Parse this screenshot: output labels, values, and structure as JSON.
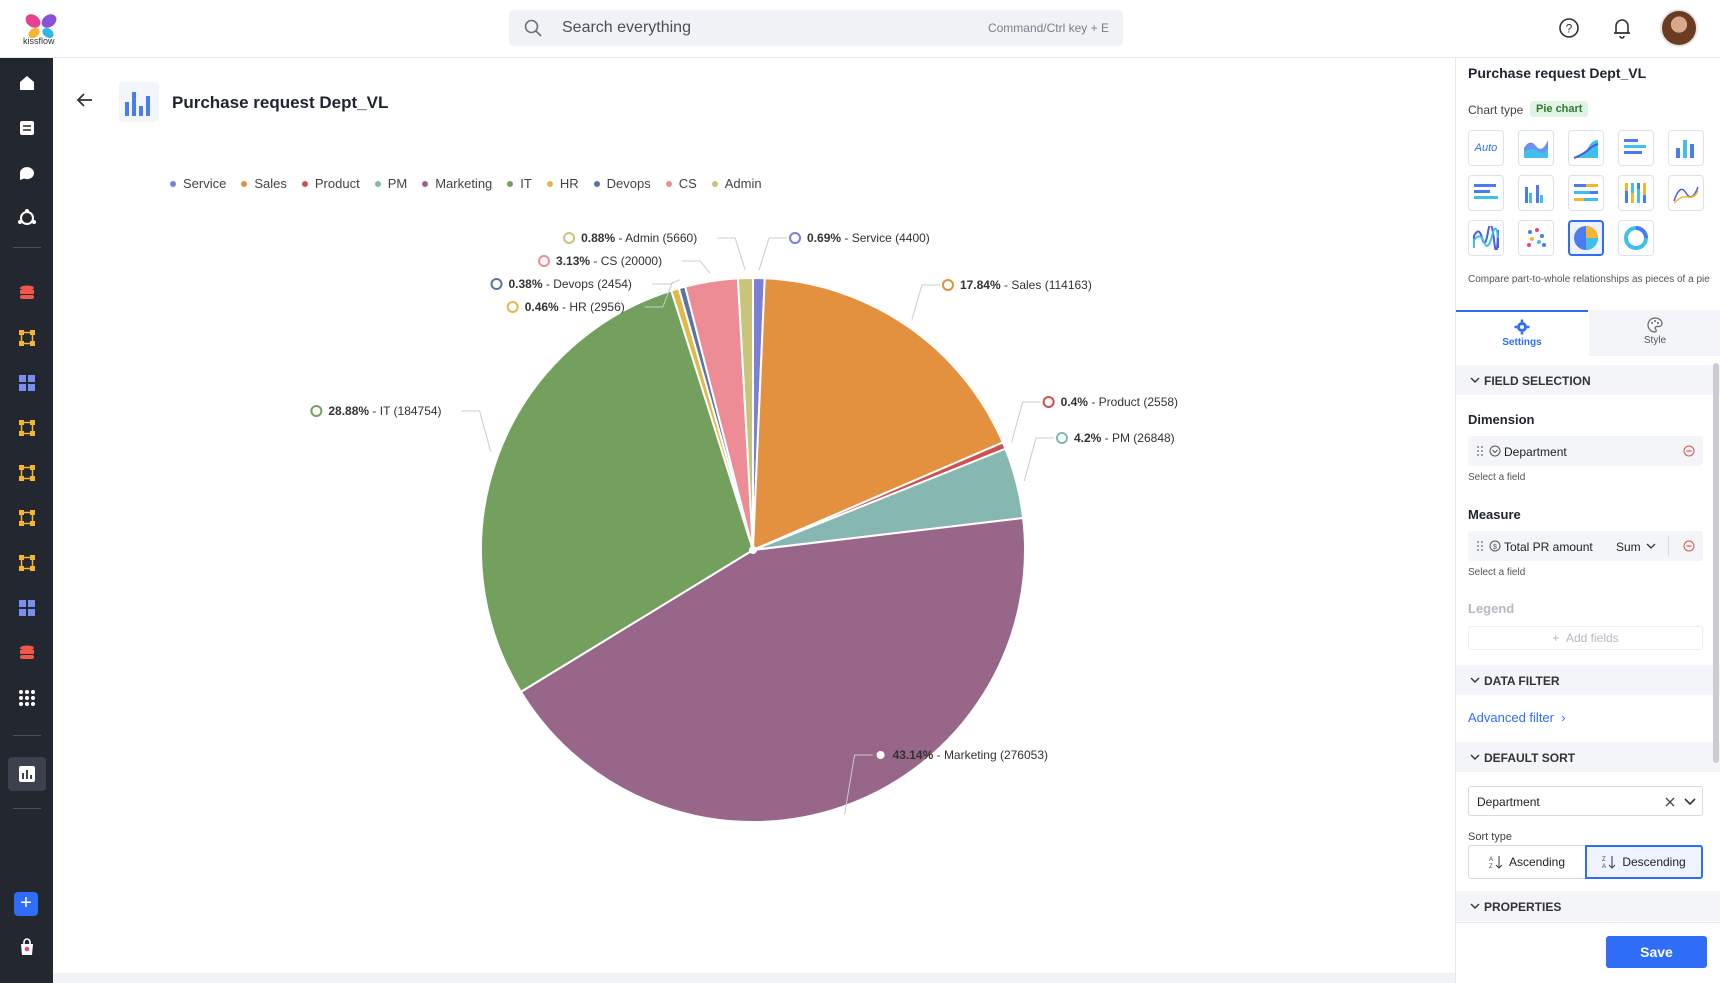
{
  "app": {
    "logo_text": "kissflow"
  },
  "search": {
    "placeholder": "Search everything",
    "shortcut_hint": "Command/Ctrl key + E"
  },
  "header": {
    "title": "Purchase request Dept_VL"
  },
  "legend": [
    {
      "name": "Service",
      "color": "#7b7fd6"
    },
    {
      "name": "Sales",
      "color": "#e4913f"
    },
    {
      "name": "Product",
      "color": "#cf5050"
    },
    {
      "name": "PM",
      "color": "#86b7b0"
    },
    {
      "name": "Marketing",
      "color": "#976689"
    },
    {
      "name": "IT",
      "color": "#74a05e"
    },
    {
      "name": "HR",
      "color": "#e2b84a"
    },
    {
      "name": "Devops",
      "color": "#5b74a4"
    },
    {
      "name": "CS",
      "color": "#ee8c95"
    },
    {
      "name": "Admin",
      "color": "#c8c479"
    }
  ],
  "chart_data": {
    "type": "pie",
    "title": "",
    "slices": [
      {
        "name": "Service",
        "value": 4400,
        "percent": "0.69%",
        "color": "#7b7fd6"
      },
      {
        "name": "Sales",
        "value": 114163,
        "percent": "17.84%",
        "color": "#e4913f"
      },
      {
        "name": "Product",
        "value": 2558,
        "percent": "0.4%",
        "color": "#cf5050"
      },
      {
        "name": "PM",
        "value": 26848,
        "percent": "4.2%",
        "color": "#86b7b0"
      },
      {
        "name": "Marketing",
        "value": 276053,
        "percent": "43.14%",
        "color": "#976689"
      },
      {
        "name": "IT",
        "value": 184754,
        "percent": "28.88%",
        "color": "#74a05e"
      },
      {
        "name": "HR",
        "value": 2956,
        "percent": "0.46%",
        "color": "#e2b84a"
      },
      {
        "name": "Devops",
        "value": 2454,
        "percent": "0.38%",
        "color": "#5b74a4"
      },
      {
        "name": "CS",
        "value": 20000,
        "percent": "3.13%",
        "color": "#ee8c95"
      },
      {
        "name": "Admin",
        "value": 5660,
        "percent": "0.88%",
        "color": "#c8c479"
      }
    ],
    "legend_position": "top-left"
  },
  "panel": {
    "title": "Purchase request Dept_VL",
    "chart_type_label": "Chart type",
    "chart_type_value": "Pie chart",
    "chart_types": [
      "auto",
      "area",
      "area-stepped",
      "horizontal-bar",
      "vertical-bar",
      "stacked-horizontal-bar",
      "grouped-bar",
      "stacked-horizontal-bar-percent",
      "stacked-vertical-bar",
      "line",
      "multi-line",
      "scatter",
      "pie",
      "donut"
    ],
    "auto_label": "Auto",
    "description": "Compare part-to-whole relationships as pieces of a pie",
    "tabs": {
      "settings": "Settings",
      "style": "Style"
    },
    "field_selection": "FIELD SELECTION",
    "dimension": {
      "label": "Dimension",
      "field": "Department",
      "hint": "Select a field"
    },
    "measure": {
      "label": "Measure",
      "field": "Total PR amount",
      "aggregate": "Sum",
      "hint": "Select a field"
    },
    "legend": {
      "label": "Legend",
      "add": "Add fields"
    },
    "data_filter": "DATA FILTER",
    "advanced_filter": "Advanced filter",
    "default_sort": "DEFAULT SORT",
    "sort_field": "Department",
    "sort_type_label": "Sort type",
    "ascending": "Ascending",
    "descending": "Descending",
    "properties": "PROPERTIES",
    "save": "Save"
  }
}
